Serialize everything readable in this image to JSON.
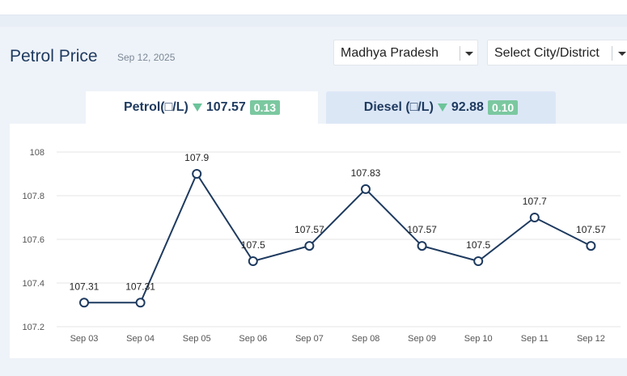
{
  "header": {
    "title": "Petrol Price",
    "date": "Sep 12, 2025"
  },
  "filters": {
    "state": "Madhya Pradesh",
    "city_placeholder": "Select City/District"
  },
  "tabs": [
    {
      "label": "Petrol(□/L)",
      "price": "107.57",
      "change": "0.13",
      "trend": "down"
    },
    {
      "label": "Diesel (□/L)",
      "price": "92.88",
      "change": "0.10",
      "trend": "down"
    }
  ],
  "colors": {
    "line": "#1e3a5f",
    "trend_down": "#6cc49a",
    "badge": "#7bc8a0"
  },
  "chart_data": {
    "type": "line",
    "categories": [
      "Sep 03",
      "Sep 04",
      "Sep 05",
      "Sep 06",
      "Sep 07",
      "Sep 08",
      "Sep 09",
      "Sep 10",
      "Sep 11",
      "Sep 12"
    ],
    "values": [
      107.31,
      107.31,
      107.9,
      107.5,
      107.57,
      107.83,
      107.57,
      107.5,
      107.7,
      107.57
    ],
    "data_labels": [
      "107.31",
      "107.31",
      "107.9",
      "107.5",
      "107.57",
      "107.83",
      "107.57",
      "107.5",
      "107.7",
      "107.57"
    ],
    "yticks": [
      "107.2",
      "107.4",
      "107.6",
      "107.8",
      "108"
    ],
    "ylim": [
      107.2,
      108
    ],
    "grid": true,
    "title": "",
    "xlabel": "",
    "ylabel": ""
  }
}
